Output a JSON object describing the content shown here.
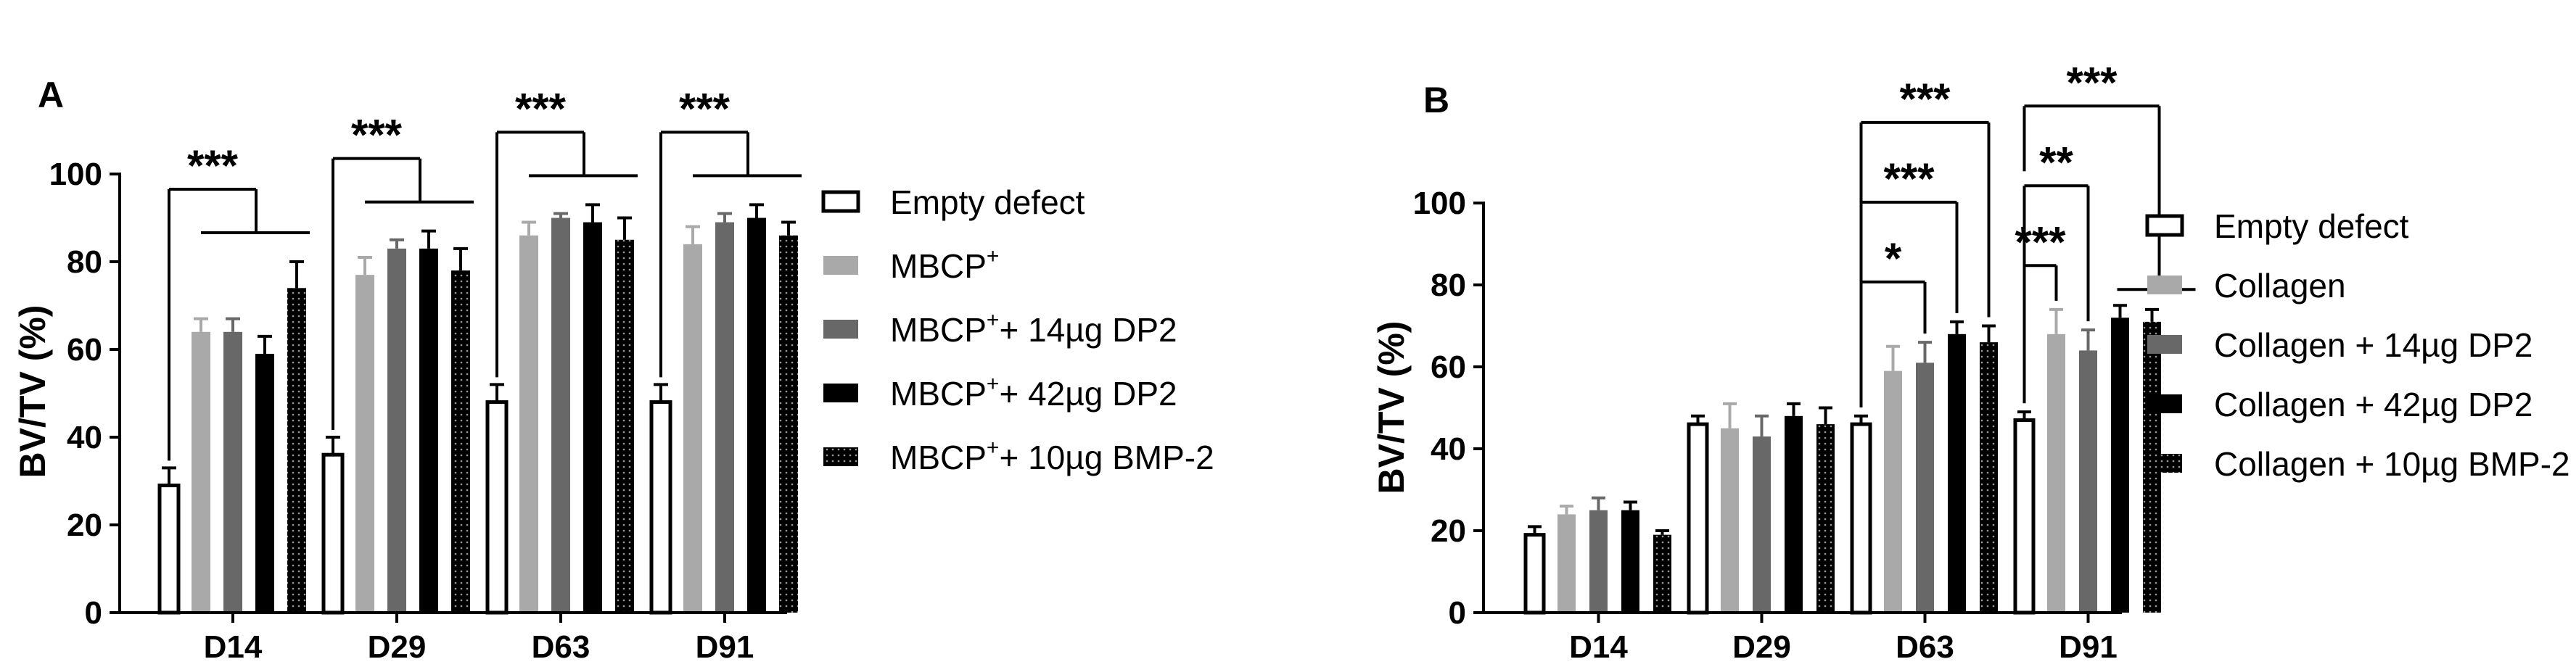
{
  "colors": {
    "empty": "#ffffff",
    "light": "#a9a9a9",
    "mid": "#686868",
    "black": "#000000",
    "dotted": "#000000",
    "stroke": "#000000"
  },
  "chart_data": [
    {
      "type": "bar",
      "panel": "A",
      "xlabel": "",
      "ylabel": "BV/TV (%)",
      "ylim": [
        0,
        100
      ],
      "yticks": [
        0,
        20,
        40,
        60,
        80,
        100
      ],
      "categories": [
        "D14",
        "D29",
        "D63",
        "D91"
      ],
      "legend_position": "right",
      "series": [
        {
          "name": "Empty defect",
          "style": "empty",
          "values": [
            29,
            36,
            48,
            48
          ],
          "errors": [
            4,
            4,
            4,
            4
          ]
        },
        {
          "name": "MBCP",
          "sup": "+",
          "suffix": "",
          "style": "light",
          "values": [
            64,
            77,
            86,
            84
          ],
          "errors": [
            3,
            4,
            3,
            4
          ]
        },
        {
          "name": "MBCP",
          "sup": "+",
          "suffix": "+ 14µg DP2",
          "style": "mid",
          "values": [
            64,
            83,
            90,
            89
          ],
          "errors": [
            3,
            2,
            1,
            2
          ]
        },
        {
          "name": "MBCP",
          "sup": "+",
          "suffix": "+ 42µg DP2",
          "style": "black",
          "values": [
            59,
            83,
            89,
            90
          ],
          "errors": [
            4,
            4,
            4,
            3
          ]
        },
        {
          "name": "MBCP",
          "sup": "+",
          "suffix": "+ 10µg BMP-2",
          "style": "dotted",
          "values": [
            74,
            78,
            85,
            86
          ],
          "errors": [
            6,
            5,
            5,
            3
          ]
        }
      ],
      "significance": [
        {
          "label": "***",
          "group": 0
        },
        {
          "label": "***",
          "group": 1
        },
        {
          "label": "***",
          "group": 2
        },
        {
          "label": "***",
          "group": 3
        }
      ]
    },
    {
      "type": "bar",
      "panel": "B",
      "xlabel": "",
      "ylabel": "BV/TV (%)",
      "ylim": [
        0,
        100
      ],
      "yticks": [
        0,
        20,
        40,
        60,
        80,
        100
      ],
      "categories": [
        "D14",
        "D29",
        "D63",
        "D91"
      ],
      "legend_position": "right",
      "series": [
        {
          "name": "Empty defect",
          "style": "empty",
          "values": [
            19,
            46,
            46,
            47
          ],
          "errors": [
            2,
            2,
            2,
            2
          ]
        },
        {
          "name": "Collagen",
          "style": "light",
          "values": [
            24,
            45,
            59,
            68
          ],
          "errors": [
            2,
            6,
            6,
            6
          ]
        },
        {
          "name": "Collagen + 14µg DP2",
          "style": "mid",
          "values": [
            25,
            43,
            61,
            64
          ],
          "errors": [
            3,
            5,
            5,
            5
          ]
        },
        {
          "name": "Collagen + 42µg DP2",
          "style": "black",
          "values": [
            25,
            48,
            68,
            72
          ],
          "errors": [
            2,
            3,
            3,
            3
          ]
        },
        {
          "name": "Collagen + 10µg BMP-2",
          "style": "dotted",
          "values": [
            19,
            46,
            66,
            71
          ],
          "errors": [
            1,
            4,
            4,
            3
          ]
        }
      ],
      "significance": [
        {
          "label": "*",
          "group": 2,
          "from": 0,
          "to": 2
        },
        {
          "label": "***",
          "group": 2,
          "from": 0,
          "to": 3
        },
        {
          "label": "***",
          "group": 2,
          "from": 0,
          "to": 4
        },
        {
          "label": "***",
          "group": 3,
          "from": 0,
          "to": 1
        },
        {
          "label": "**",
          "group": 3,
          "from": 0,
          "to": 2
        },
        {
          "label": "***",
          "group": 3,
          "from": 0,
          "to": "rest"
        }
      ]
    }
  ]
}
